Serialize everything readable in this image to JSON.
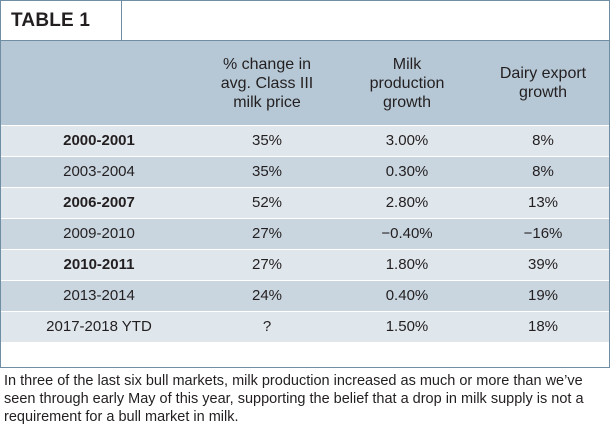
{
  "table": {
    "title": "TABLE 1",
    "headers": [
      "",
      "% change in\navg. Class III\nmilk price",
      "Milk\nproduction\ngrowth",
      "Dairy export\ngrowth"
    ],
    "rows": [
      {
        "period": "2000-2001",
        "bold": true,
        "price_change": "35%",
        "milk_growth": "3.00%",
        "export_growth": "8%"
      },
      {
        "period": "2003-2004",
        "bold": false,
        "price_change": "35%",
        "milk_growth": "0.30%",
        "export_growth": "8%"
      },
      {
        "period": "2006-2007",
        "bold": true,
        "price_change": "52%",
        "milk_growth": "2.80%",
        "export_growth": "13%"
      },
      {
        "period": "2009-2010",
        "bold": false,
        "price_change": "27%",
        "milk_growth": "−0.40%",
        "export_growth": "−16%"
      },
      {
        "period": "2010-2011",
        "bold": true,
        "price_change": "27%",
        "milk_growth": "1.80%",
        "export_growth": "39%"
      },
      {
        "period": "2013-2014",
        "bold": false,
        "price_change": "24%",
        "milk_growth": "0.40%",
        "export_growth": "19%"
      },
      {
        "period": "2017-2018 YTD",
        "bold": false,
        "price_change": "?",
        "milk_growth": "1.50%",
        "export_growth": "18%"
      }
    ]
  },
  "caption": "In three of the last six bull markets, milk production increased as much or more than we’ve seen through early May of this year, supporting the belief that a drop in milk supply is not a requirement for a bull market in milk.",
  "colors": {
    "header_bg": "#b6c8d6",
    "row_light": "#dfe6ec",
    "row_dark": "#c9d6e0",
    "border": "#6f8ea3"
  }
}
